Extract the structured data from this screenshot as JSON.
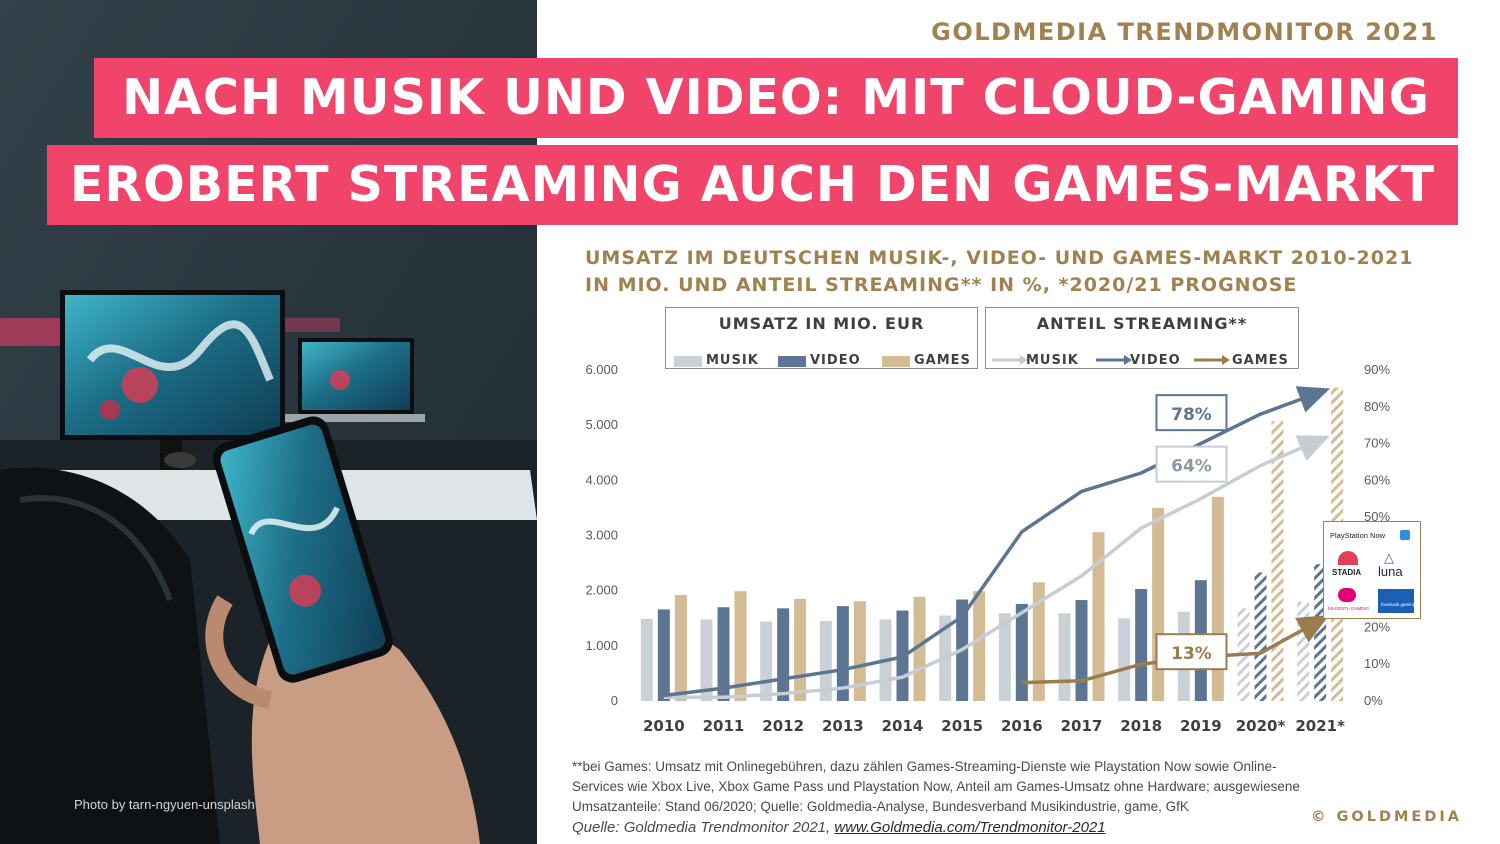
{
  "brand_top": "GOLDMEDIA TRENDMONITOR 2021",
  "headline_line1": "NACH MUSIK UND VIDEO: MIT CLOUD-GAMING",
  "headline_line2": "EROBERT STREAMING AUCH DEN GAMES-MARKT",
  "photo_credit": "Photo by tarn-ngyuen-unsplash",
  "colors": {
    "pink": "#f0446a",
    "gold": "#a0814f",
    "musik": "#c9d1d6",
    "video": "#5b7592",
    "games": "#d3bb94",
    "musik_line": "#c5ced4",
    "video_line": "#5b7592",
    "games_line": "#9b7c4e"
  },
  "chart_data": {
    "type": "bar+line",
    "title_line1": "UMSATZ IM DEUTSCHEN MUSIK-, VIDEO- UND GAMES-MARKT 2010-2021",
    "title_line2": "IN MIO. UND ANTEIL STREAMING** IN %, *2020/21 PROGNOSE",
    "legend_bars_title": "UMSATZ IN MIO. EUR",
    "legend_lines_title": "ANTEIL STREAMING**",
    "legend_labels": [
      "MUSIK",
      "VIDEO",
      "GAMES"
    ],
    "categories": [
      "2010",
      "2011",
      "2012",
      "2013",
      "2014",
      "2015",
      "2016",
      "2017",
      "2018",
      "2019",
      "2020*",
      "2021*"
    ],
    "y_left": {
      "ticks": [
        "0",
        "1.000",
        "2.000",
        "3.000",
        "4.000",
        "5.000",
        "6.000"
      ],
      "range": [
        0,
        6000
      ]
    },
    "y_right": {
      "ticks": [
        "0%",
        "10%",
        "20%",
        "30%",
        "40%",
        "50%",
        "60%",
        "70%",
        "80%",
        "90%"
      ],
      "range": [
        0,
        90
      ]
    },
    "bar_series": [
      {
        "name": "MUSIK",
        "values": [
          1490,
          1480,
          1440,
          1450,
          1480,
          1550,
          1590,
          1590,
          1500,
          1620,
          1680,
          1800
        ]
      },
      {
        "name": "VIDEO",
        "values": [
          1660,
          1700,
          1680,
          1720,
          1640,
          1840,
          1760,
          1830,
          2030,
          2190,
          2330,
          2480
        ]
      },
      {
        "name": "GAMES",
        "values": [
          1920,
          1990,
          1850,
          1810,
          1890,
          1990,
          2150,
          3060,
          3500,
          3700,
          5070,
          5680
        ]
      }
    ],
    "forecast_from_index": 10,
    "line_series": [
      {
        "name": "MUSIK",
        "values": [
          1,
          1,
          2,
          3.5,
          6.5,
          14,
          24,
          34,
          47,
          55,
          64,
          71
        ]
      },
      {
        "name": "VIDEO",
        "values": [
          1.5,
          3.5,
          6,
          8.5,
          12,
          23,
          46,
          57,
          62,
          70,
          78,
          84
        ]
      },
      {
        "name": "GAMES",
        "values": [
          null,
          null,
          null,
          null,
          null,
          null,
          5,
          5.5,
          10,
          12,
          13,
          22
        ]
      }
    ],
    "callouts": [
      "78%",
      "64%",
      "13%"
    ]
  },
  "logos": {
    "psnow": "PlayStation Now",
    "stadia": "STADIA",
    "luna": "luna",
    "magenta": "MAGENTA GAMING",
    "facebook": "facebook gaming"
  },
  "footnote": "**bei Games: Umsatz mit Onlinegebühren, dazu zählen Games-Streaming-Dienste wie Playstation Now sowie Online-Services wie Xbox Live, Xbox Game Pass und Playstation Now, Anteil am Games-Umsatz ohne Hardware; ausgewiesene Umsatzanteile: Stand 06/2020; Quelle: Goldmedia-Analyse, Bundesverband Musikindustrie, game, GfK",
  "source_prefix": "Quelle: Goldmedia Trendmonitor 2021,",
  "source_link": "www.Goldmedia.com/Trendmonitor-2021",
  "copyright": "© GOLDMEDIA"
}
